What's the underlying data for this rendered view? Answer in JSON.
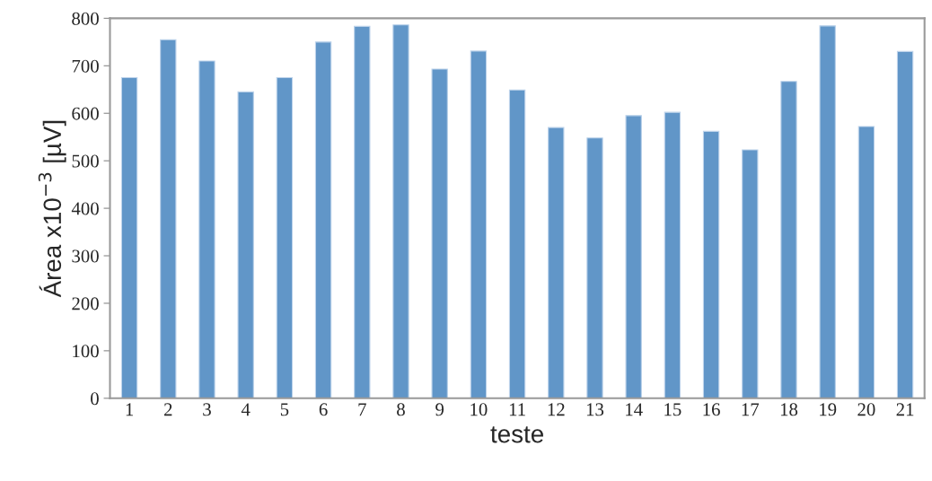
{
  "chart_data": {
    "type": "bar",
    "xlabel": "teste",
    "ylabel": "Área x10$^{−3}$ [µV]",
    "categories": [
      "1",
      "2",
      "3",
      "4",
      "5",
      "6",
      "7",
      "8",
      "9",
      "10",
      "11",
      "12",
      "13",
      "14",
      "15",
      "16",
      "17",
      "18",
      "19",
      "20",
      "21"
    ],
    "values": [
      675,
      755,
      710,
      645,
      675,
      750,
      783,
      786,
      693,
      731,
      649,
      570,
      548,
      595,
      602,
      562,
      523,
      667,
      784,
      572,
      730
    ],
    "color": "#6196c8",
    "ylim": [
      0,
      800
    ],
    "yticks": [
      0,
      100,
      200,
      300,
      400,
      500,
      600,
      700,
      800
    ],
    "grid": false,
    "legend": false
  }
}
